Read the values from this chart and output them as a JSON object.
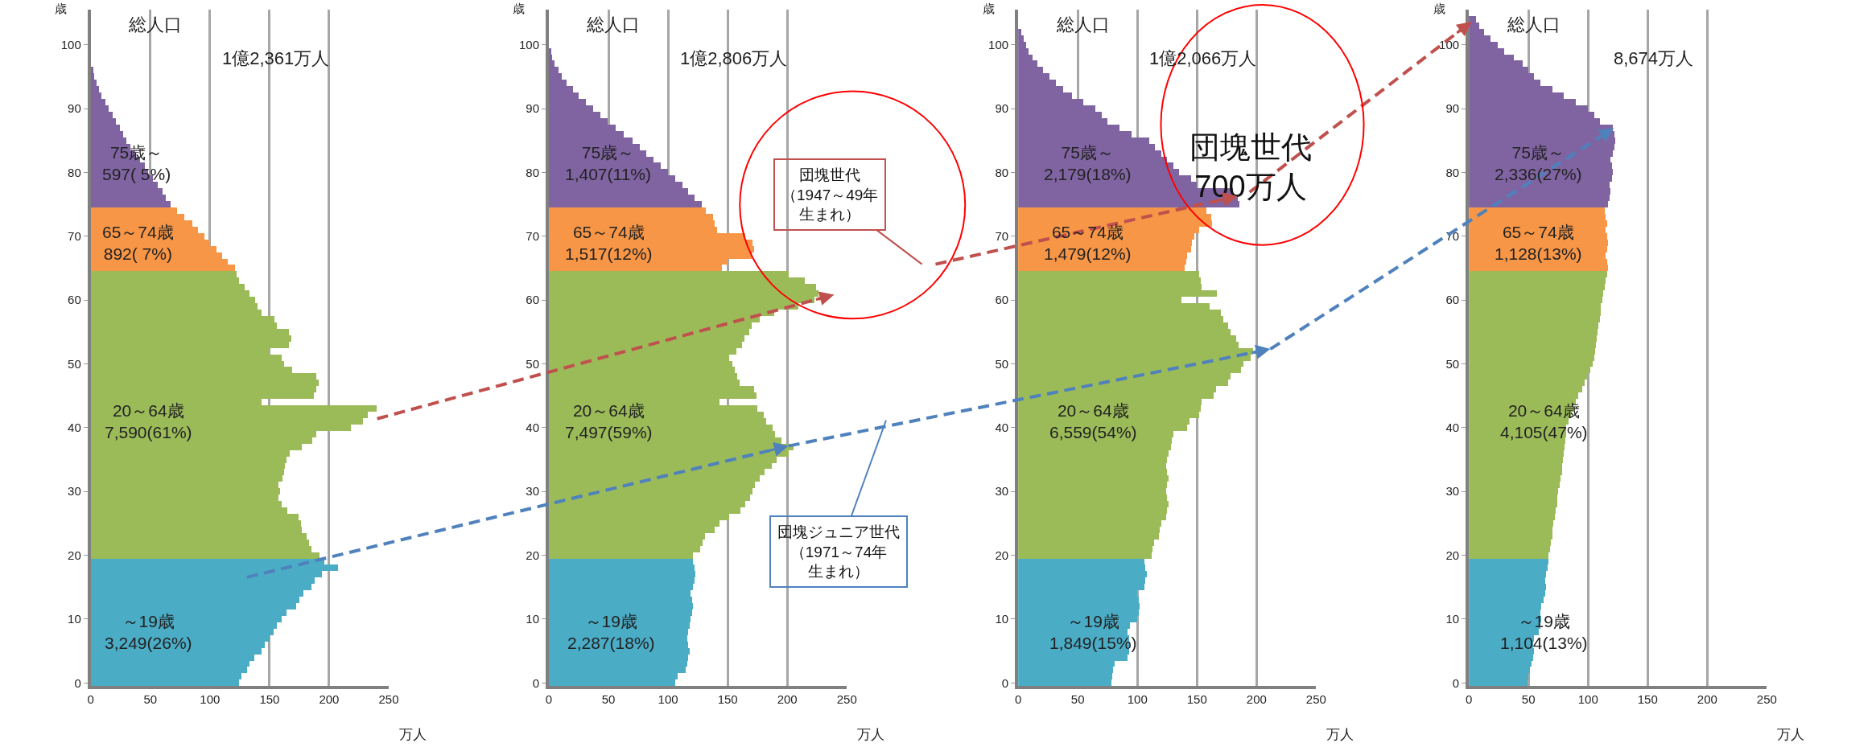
{
  "chart_data": [
    {
      "type": "bar",
      "orientation": "horizontal",
      "title": "総人口",
      "subtitle": "1億2,361万人",
      "xlabel": "万人",
      "ylabel": "歳",
      "xlim": [
        0,
        250
      ],
      "xticks": [
        0,
        50,
        100,
        150,
        200,
        250
      ],
      "ylim": [
        -0.5,
        105.5
      ],
      "yticks": [
        0,
        10,
        20,
        30,
        40,
        50,
        60,
        70,
        80,
        90,
        100
      ],
      "grid": "x",
      "series": [
        {
          "color": "#4bacc6",
          "x": [
            0,
            1,
            2,
            3,
            4,
            5,
            6,
            7,
            8,
            9,
            10,
            11,
            12,
            13,
            14,
            15,
            16,
            17,
            18,
            19
          ],
          "values": [
            124,
            126,
            131,
            133,
            137,
            143,
            146,
            150,
            153,
            156,
            160,
            164,
            172,
            175,
            178,
            185,
            188,
            194,
            207,
            196
          ]
        },
        {
          "color": "#9bbb59",
          "x": [
            20,
            21,
            22,
            23,
            24,
            25,
            26,
            27,
            28,
            29,
            30,
            31,
            32,
            33,
            34,
            35,
            36,
            37,
            38,
            39,
            40,
            41,
            42,
            43,
            44,
            45,
            46,
            47,
            48,
            49,
            50,
            51,
            52,
            53,
            54,
            55,
            56,
            57,
            58,
            59,
            60,
            61,
            62,
            63,
            64
          ],
          "values": [
            192,
            185,
            183,
            181,
            177,
            176,
            174,
            165,
            160,
            157,
            159,
            157,
            161,
            162,
            163,
            164,
            167,
            177,
            186,
            189,
            218,
            228,
            232,
            240,
            143,
            187,
            189,
            191,
            189,
            169,
            162,
            160,
            149,
            166,
            168,
            166,
            156,
            154,
            143,
            140,
            138,
            133,
            129,
            124,
            122
          ]
        },
        {
          "color": "#f79646",
          "x": [
            65,
            66,
            67,
            68,
            69,
            70,
            71,
            72,
            73,
            74
          ],
          "values": [
            121,
            115,
            110,
            105,
            100,
            95,
            90,
            85,
            78,
            72
          ]
        },
        {
          "color": "#8064a2",
          "x": [
            75,
            76,
            77,
            78,
            79,
            80,
            81,
            82,
            83,
            84,
            85,
            86,
            87,
            88,
            89,
            90,
            91,
            92,
            93,
            94,
            95,
            96
          ],
          "values": [
            67,
            63,
            60,
            56,
            52,
            48,
            45,
            41,
            37,
            33,
            30,
            27,
            24,
            21,
            18,
            15,
            12,
            9,
            7,
            5,
            3,
            2
          ]
        }
      ],
      "annotations": [
        {
          "text": "75歳～\n597( 5%)",
          "x": 8,
          "y": 81.5
        },
        {
          "text": "65～74歳\n892( 7%)",
          "x": 8,
          "y": 69
        },
        {
          "text": "20～64歳\n7,590(61%)",
          "x": 10,
          "y": 41
        },
        {
          "text": "～19歳\n3,249(26%)",
          "x": 10,
          "y": 8
        }
      ]
    },
    {
      "type": "bar",
      "orientation": "horizontal",
      "title": "総人口",
      "subtitle": "1億2,806万人",
      "xlabel": "万人",
      "ylabel": "歳",
      "xlim": [
        0,
        250
      ],
      "xticks": [
        0,
        50,
        100,
        150,
        200,
        250
      ],
      "ylim": [
        -0.5,
        105.5
      ],
      "yticks": [
        0,
        10,
        20,
        30,
        40,
        50,
        60,
        70,
        80,
        90,
        100
      ],
      "grid": "x",
      "series": [
        {
          "color": "#4bacc6",
          "x": [
            0,
            1,
            2,
            3,
            4,
            5,
            6,
            7,
            8,
            9,
            10,
            11,
            12,
            13,
            14,
            15,
            16,
            17,
            18,
            19
          ],
          "values": [
            106,
            108,
            115,
            116,
            117,
            118,
            117,
            116,
            117,
            118,
            119,
            120,
            121,
            120,
            119,
            121,
            122,
            123,
            122,
            121
          ]
        },
        {
          "color": "#9bbb59",
          "x": [
            20,
            21,
            22,
            23,
            24,
            25,
            26,
            27,
            28,
            29,
            30,
            31,
            32,
            33,
            34,
            35,
            36,
            37,
            38,
            39,
            40,
            41,
            42,
            43,
            44,
            45,
            46,
            47,
            48,
            49,
            50,
            51,
            52,
            53,
            54,
            55,
            56,
            57,
            58,
            59,
            60,
            61,
            62,
            63,
            64
          ],
          "values": [
            121,
            127,
            129,
            131,
            139,
            143,
            151,
            161,
            165,
            169,
            171,
            173,
            177,
            181,
            187,
            191,
            201,
            205,
            195,
            190,
            188,
            182,
            180,
            175,
            143,
            174,
            172,
            160,
            158,
            156,
            154,
            151,
            157,
            162,
            164,
            168,
            170,
            177,
            189,
            209,
            223,
            226,
            224,
            215,
            201
          ]
        },
        {
          "color": "#f79646",
          "x": [
            65,
            66,
            67,
            68,
            69,
            70,
            71,
            72,
            73,
            74
          ],
          "values": [
            145,
            150,
            170,
            172,
            171,
            165,
            141,
            139,
            138,
            132
          ]
        },
        {
          "color": "#8064a2",
          "x": [
            75,
            76,
            77,
            78,
            79,
            80,
            81,
            82,
            83,
            84,
            85,
            86,
            87,
            88,
            89,
            90,
            91,
            92,
            93,
            94,
            95,
            96,
            97,
            98,
            99
          ],
          "values": [
            128,
            122,
            117,
            112,
            106,
            100,
            94,
            88,
            82,
            76,
            70,
            63,
            56,
            49,
            43,
            37,
            31,
            25,
            20,
            15,
            11,
            8,
            5,
            3,
            2
          ]
        }
      ],
      "annotations": [
        {
          "text": "75歳～\n1,407(11%)",
          "x": 12,
          "y": 81.5
        },
        {
          "text": "65～74歳\n1,517(12%)",
          "x": 12,
          "y": 69
        },
        {
          "text": "20～64歳\n7,497(59%)",
          "x": 12,
          "y": 41
        },
        {
          "text": "～19歳\n2,287(18%)",
          "x": 14,
          "y": 8
        },
        "団塊世代（1947～49年生まれ）",
        "団塊ジュニア世代（1971～74年生まれ）"
      ]
    },
    {
      "type": "bar",
      "orientation": "horizontal",
      "title": "総人口",
      "subtitle": "1億2,066万人",
      "xlabel": "万人",
      "ylabel": "歳",
      "xlim": [
        0,
        250
      ],
      "xticks": [
        0,
        50,
        100,
        150,
        200,
        250
      ],
      "ylim": [
        -0.5,
        105.5
      ],
      "yticks": [
        0,
        10,
        20,
        30,
        40,
        50,
        60,
        70,
        80,
        90,
        100
      ],
      "grid": "x",
      "series": [
        {
          "color": "#4bacc6",
          "x": [
            0,
            1,
            2,
            3,
            4,
            5,
            6,
            7,
            8,
            9,
            10,
            11,
            12,
            13,
            14,
            15,
            16,
            17,
            18,
            19
          ],
          "values": [
            78,
            79,
            80,
            81,
            92,
            93,
            94,
            93,
            92,
            94,
            100,
            101,
            102,
            101,
            100,
            106,
            107,
            108,
            107,
            106
          ]
        },
        {
          "color": "#9bbb59",
          "x": [
            20,
            21,
            22,
            23,
            24,
            25,
            26,
            27,
            28,
            29,
            30,
            31,
            32,
            33,
            34,
            35,
            36,
            37,
            38,
            39,
            40,
            41,
            42,
            43,
            44,
            45,
            46,
            47,
            48,
            49,
            50,
            51,
            52,
            53,
            54,
            55,
            56,
            57,
            58,
            59,
            60,
            61,
            62,
            63,
            64
          ],
          "values": [
            112,
            113,
            114,
            118,
            119,
            120,
            124,
            125,
            126,
            125,
            124,
            125,
            126,
            125,
            124,
            125,
            126,
            128,
            129,
            130,
            142,
            144,
            152,
            153,
            154,
            164,
            166,
            176,
            178,
            187,
            189,
            195,
            197,
            185,
            183,
            178,
            176,
            172,
            170,
            161,
            137,
            167,
            154,
            153,
            152
          ]
        },
        {
          "color": "#f79646",
          "x": [
            65,
            66,
            67,
            68,
            69,
            70,
            71,
            72,
            73,
            74
          ],
          "values": [
            140,
            141,
            142,
            145,
            146,
            148,
            152,
            163,
            162,
            158
          ]
        },
        {
          "color": "#8064a2",
          "x": [
            75,
            76,
            77,
            78,
            79,
            80,
            81,
            82,
            83,
            84,
            85,
            86,
            87,
            88,
            89,
            90,
            91,
            92,
            93,
            94,
            95,
            96,
            97,
            98,
            99,
            100,
            101,
            102
          ],
          "values": [
            186,
            184,
            180,
            150,
            145,
            135,
            130,
            125,
            120,
            115,
            110,
            95,
            85,
            75,
            70,
            65,
            55,
            45,
            38,
            32,
            26,
            21,
            16,
            12,
            9,
            7,
            5,
            3
          ]
        }
      ],
      "annotations": [
        {
          "text": "75歳～\n2,179(18%)",
          "x": 20,
          "y": 81.5
        },
        {
          "text": "65～74歳\n1,479(12%)",
          "x": 20,
          "y": 69
        },
        {
          "text": "20～64歳\n6,559(54%)",
          "x": 25,
          "y": 41
        },
        {
          "text": "～19歳\n1,849(15%)",
          "x": 25,
          "y": 8
        },
        "団塊世代\n700万人"
      ]
    },
    {
      "type": "bar",
      "orientation": "horizontal",
      "title": "総人口",
      "subtitle": "8,674万人",
      "xlabel": "万人",
      "ylabel": "歳",
      "xlim": [
        0,
        250
      ],
      "xticks": [
        0,
        50,
        100,
        150,
        200,
        250
      ],
      "ylim": [
        -0.5,
        105.5
      ],
      "yticks": [
        0,
        10,
        20,
        30,
        40,
        50,
        60,
        70,
        80,
        90,
        100
      ],
      "grid": "x",
      "series": [
        {
          "color": "#4bacc6",
          "x": [
            0,
            1,
            2,
            3,
            4,
            5,
            6,
            7,
            8,
            9,
            10,
            11,
            12,
            13,
            14,
            15,
            16,
            17,
            18,
            19
          ],
          "values": [
            49,
            50,
            51,
            53,
            54,
            55,
            54,
            55,
            59,
            60,
            61,
            60,
            61,
            63,
            64,
            65,
            64,
            65,
            66,
            67
          ]
        },
        {
          "color": "#9bbb59",
          "x": [
            20,
            21,
            22,
            23,
            24,
            25,
            26,
            27,
            28,
            29,
            30,
            31,
            32,
            33,
            34,
            35,
            36,
            37,
            38,
            39,
            40,
            41,
            42,
            43,
            44,
            45,
            46,
            47,
            48,
            49,
            50,
            51,
            52,
            53,
            54,
            55,
            56,
            57,
            58,
            59,
            60,
            61,
            62,
            63,
            64
          ],
          "values": [
            67,
            68,
            69,
            70,
            70.5,
            71,
            72,
            73,
            74,
            74.5,
            75,
            76,
            77,
            78,
            78.5,
            79,
            80,
            80.5,
            81,
            81.5,
            82,
            84,
            86,
            88,
            90,
            92,
            95,
            97,
            100,
            102,
            104,
            105,
            106,
            107,
            107.5,
            108,
            109,
            110,
            110.5,
            111,
            112,
            113,
            114,
            115,
            116
          ]
        },
        {
          "color": "#f79646",
          "x": [
            65,
            66,
            67,
            68,
            69,
            70,
            71,
            72,
            73,
            74
          ],
          "values": [
            117,
            116,
            115,
            116,
            117,
            116,
            115,
            116,
            115,
            114
          ]
        },
        {
          "color": "#8064a2",
          "x": [
            75,
            76,
            77,
            78,
            79,
            80,
            81,
            82,
            83,
            84,
            85,
            86,
            87,
            88,
            89,
            90,
            91,
            92,
            93,
            94,
            95,
            96,
            97,
            98,
            99,
            100,
            101,
            102,
            103,
            104
          ],
          "values": [
            117,
            118,
            119,
            118,
            120,
            121,
            120,
            119,
            121,
            122,
            123,
            122,
            121,
            110,
            105,
            100,
            90,
            80,
            70,
            60,
            55,
            50,
            45,
            38,
            30,
            24,
            18,
            13,
            9,
            6
          ]
        }
      ],
      "annotations": [
        {
          "text": "75歳～\n2,336(27%)",
          "x": 20,
          "y": 81.5
        },
        {
          "text": "65～74歳\n1,128(13%)",
          "x": 20,
          "y": 69
        },
        {
          "text": "20～64歳\n4,105(47%)",
          "x": 25,
          "y": 41
        },
        {
          "text": "～19歳\n1,104(13%)",
          "x": 25,
          "y": 8
        }
      ]
    }
  ]
}
